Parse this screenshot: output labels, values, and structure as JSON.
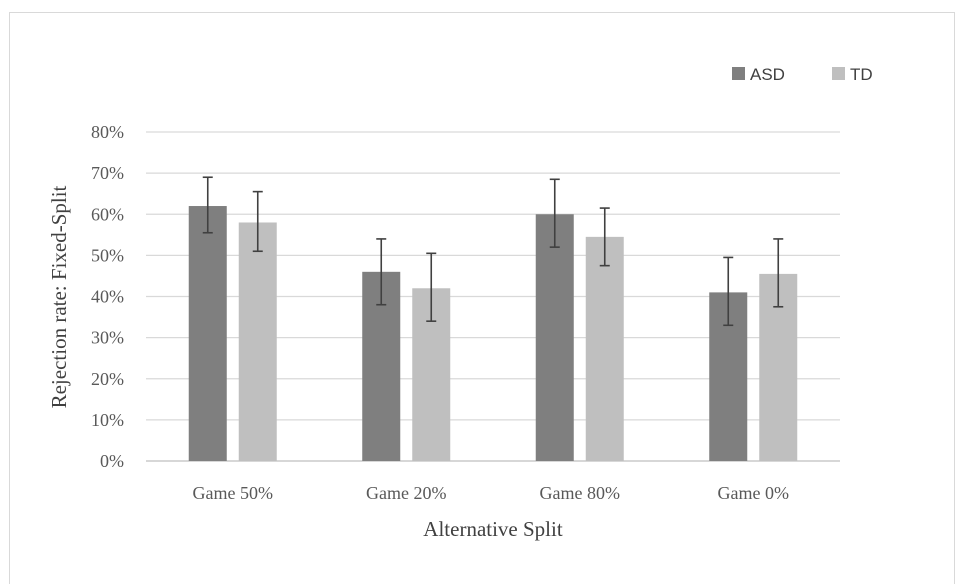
{
  "chart_data": {
    "type": "bar",
    "title": "",
    "xlabel": "Alternative Split",
    "ylabel": "Rejection rate: Fixed-Split",
    "categories": [
      "Game 50%",
      "Game 20%",
      "Game 80%",
      "Game 0%"
    ],
    "ylim": [
      0,
      80
    ],
    "yticks": [
      0,
      10,
      20,
      30,
      40,
      50,
      60,
      70,
      80
    ],
    "ytick_labels": [
      "0%",
      "10%",
      "20%",
      "30%",
      "40%",
      "50%",
      "60%",
      "70%",
      "80%"
    ],
    "grid": true,
    "legend_position": "top-right",
    "series": [
      {
        "name": "ASD",
        "color": "#7f7f7f",
        "values": [
          62,
          46,
          60,
          41
        ],
        "error_low": [
          55.5,
          38,
          52,
          33
        ],
        "error_high": [
          69,
          54,
          68.5,
          49.5
        ]
      },
      {
        "name": "TD",
        "color": "#bfbfbf",
        "values": [
          58,
          42,
          54.5,
          45.5
        ],
        "error_low": [
          51,
          34,
          47.5,
          37.5
        ],
        "error_high": [
          65.5,
          50.5,
          61.5,
          54
        ]
      }
    ]
  }
}
